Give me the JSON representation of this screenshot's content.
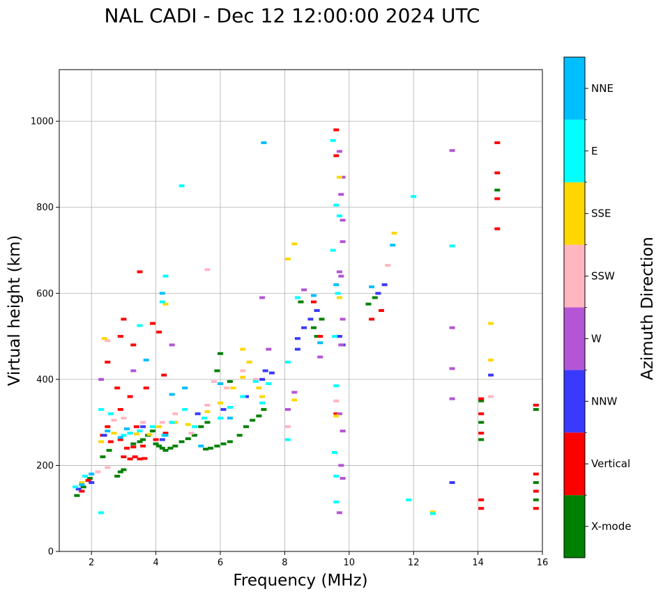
{
  "chart_data": {
    "type": "scatter",
    "title": "NAL CADI - Dec 12 12:00:00 2024 UTC",
    "xlabel": "Frequency (MHz)",
    "ylabel": "Virtual height (km)",
    "xlim": [
      1,
      16
    ],
    "ylim": [
      0,
      1120
    ],
    "xticks": [
      2,
      4,
      6,
      8,
      10,
      12,
      14,
      16
    ],
    "yticks": [
      0,
      200,
      400,
      600,
      800,
      1000
    ],
    "grid": true,
    "colorbar": {
      "label": "Azimuth Direction",
      "categories": [
        "X-mode",
        "Vertical",
        "NNW",
        "W",
        "SSW",
        "SSE",
        "E",
        "NNE"
      ],
      "colors": [
        "#008000",
        "#ff0000",
        "#3a3aff",
        "#b455d5",
        "#ffb6c1",
        "#ffd700",
        "#00ffff",
        "#00bfff"
      ]
    },
    "series": [
      {
        "name": "X-mode",
        "points": [
          [
            1.55,
            130
          ],
          [
            1.75,
            150
          ],
          [
            1.95,
            170
          ],
          [
            2.35,
            220
          ],
          [
            2.55,
            235
          ],
          [
            2.8,
            175
          ],
          [
            2.9,
            185
          ],
          [
            3.0,
            190
          ],
          [
            3.3,
            250
          ],
          [
            3.5,
            255
          ],
          [
            3.6,
            260
          ],
          [
            3.75,
            270
          ],
          [
            3.9,
            280
          ],
          [
            4.0,
            250
          ],
          [
            4.1,
            245
          ],
          [
            4.2,
            240
          ],
          [
            4.3,
            235
          ],
          [
            4.45,
            240
          ],
          [
            4.6,
            245
          ],
          [
            4.8,
            255
          ],
          [
            5.0,
            262
          ],
          [
            5.2,
            270
          ],
          [
            5.4,
            290
          ],
          [
            5.6,
            300
          ],
          [
            5.55,
            238
          ],
          [
            5.7,
            240
          ],
          [
            5.9,
            245
          ],
          [
            6.1,
            250
          ],
          [
            6.3,
            255
          ],
          [
            6.6,
            270
          ],
          [
            6.8,
            290
          ],
          [
            7.0,
            305
          ],
          [
            7.2,
            315
          ],
          [
            7.35,
            330
          ],
          [
            6.3,
            395
          ],
          [
            5.9,
            420
          ],
          [
            6.0,
            460
          ],
          [
            8.5,
            580
          ],
          [
            8.9,
            520
          ],
          [
            9.0,
            500
          ],
          [
            9.15,
            540
          ],
          [
            10.6,
            575
          ],
          [
            10.8,
            590
          ],
          [
            14.1,
            300
          ],
          [
            14.1,
            260
          ],
          [
            14.1,
            350
          ],
          [
            15.8,
            120
          ],
          [
            15.8,
            160
          ],
          [
            15.8,
            330
          ],
          [
            14.6,
            840
          ]
        ]
      },
      {
        "name": "Vertical",
        "points": [
          [
            1.7,
            140
          ],
          [
            1.9,
            165
          ],
          [
            2.35,
            270
          ],
          [
            2.5,
            290
          ],
          [
            2.6,
            255
          ],
          [
            3.0,
            220
          ],
          [
            3.2,
            215
          ],
          [
            3.35,
            220
          ],
          [
            3.5,
            215
          ],
          [
            3.65,
            216
          ],
          [
            3.1,
            240
          ],
          [
            3.3,
            243
          ],
          [
            3.6,
            245
          ],
          [
            2.9,
            260
          ],
          [
            3.4,
            290
          ],
          [
            4.0,
            260
          ],
          [
            4.3,
            275
          ],
          [
            2.9,
            330
          ],
          [
            3.2,
            360
          ],
          [
            3.7,
            380
          ],
          [
            4.5,
            300
          ],
          [
            2.5,
            440
          ],
          [
            2.9,
            500
          ],
          [
            3.0,
            540
          ],
          [
            3.3,
            480
          ],
          [
            3.5,
            650
          ],
          [
            3.9,
            530
          ],
          [
            4.1,
            510
          ],
          [
            4.25,
            410
          ],
          [
            2.8,
            380
          ],
          [
            8.9,
            580
          ],
          [
            9.1,
            500
          ],
          [
            9.0,
            560
          ],
          [
            9.6,
            320
          ],
          [
            9.6,
            980
          ],
          [
            9.6,
            920
          ],
          [
            10.7,
            540
          ],
          [
            11.0,
            560
          ],
          [
            14.1,
            100
          ],
          [
            14.1,
            120
          ],
          [
            14.1,
            355
          ],
          [
            14.1,
            320
          ],
          [
            14.1,
            275
          ],
          [
            14.6,
            950
          ],
          [
            14.6,
            880
          ],
          [
            14.6,
            820
          ],
          [
            14.6,
            750
          ],
          [
            15.8,
            100
          ],
          [
            15.8,
            140
          ],
          [
            15.8,
            180
          ],
          [
            15.8,
            340
          ]
        ]
      },
      {
        "name": "NNW",
        "points": [
          [
            1.6,
            145
          ],
          [
            2.0,
            160
          ],
          [
            2.4,
            270
          ],
          [
            3.2,
            275
          ],
          [
            3.6,
            290
          ],
          [
            4.2,
            260
          ],
          [
            4.6,
            300
          ],
          [
            5.3,
            320
          ],
          [
            6.1,
            330
          ],
          [
            6.8,
            360
          ],
          [
            7.3,
            400
          ],
          [
            7.4,
            420
          ],
          [
            8.4,
            470
          ],
          [
            8.4,
            495
          ],
          [
            8.6,
            520
          ],
          [
            8.8,
            540
          ],
          [
            9.0,
            560
          ],
          [
            9.7,
            500
          ],
          [
            9.8,
            480
          ],
          [
            10.9,
            600
          ],
          [
            11.1,
            620
          ],
          [
            13.2,
            160
          ],
          [
            14.4,
            410
          ],
          [
            7.6,
            415
          ]
        ]
      },
      {
        "name": "W",
        "points": [
          [
            2.3,
            400
          ],
          [
            3.3,
            420
          ],
          [
            4.5,
            480
          ],
          [
            7.3,
            590
          ],
          [
            7.5,
            470
          ],
          [
            8.1,
            330
          ],
          [
            8.3,
            370
          ],
          [
            8.6,
            608
          ],
          [
            9.1,
            452
          ],
          [
            9.7,
            930
          ],
          [
            9.8,
            870
          ],
          [
            9.75,
            830
          ],
          [
            9.8,
            770
          ],
          [
            9.8,
            720
          ],
          [
            9.7,
            650
          ],
          [
            9.75,
            640
          ],
          [
            9.8,
            540
          ],
          [
            9.75,
            480
          ],
          [
            9.7,
            320
          ],
          [
            9.8,
            280
          ],
          [
            9.75,
            200
          ],
          [
            9.8,
            170
          ],
          [
            9.7,
            90
          ],
          [
            13.2,
            520
          ],
          [
            13.2,
            425
          ],
          [
            13.2,
            355
          ],
          [
            13.2,
            932
          ]
        ]
      },
      {
        "name": "SSW",
        "points": [
          [
            2.2,
            185
          ],
          [
            2.5,
            195
          ],
          [
            2.7,
            305
          ],
          [
            3.0,
            310
          ],
          [
            3.6,
            300
          ],
          [
            4.2,
            300
          ],
          [
            4.6,
            320
          ],
          [
            5.1,
            275
          ],
          [
            5.6,
            340
          ],
          [
            5.8,
            395
          ],
          [
            6.2,
            380
          ],
          [
            6.7,
            420
          ],
          [
            6.9,
            440
          ],
          [
            7.1,
            400
          ],
          [
            8.1,
            290
          ],
          [
            9.6,
            350
          ],
          [
            11.2,
            665
          ],
          [
            14.4,
            360
          ],
          [
            5.6,
            655
          ],
          [
            2.5,
            490
          ]
        ]
      },
      {
        "name": "SSE",
        "points": [
          [
            1.7,
            160
          ],
          [
            2.3,
            255
          ],
          [
            2.7,
            275
          ],
          [
            3.4,
            273
          ],
          [
            3.8,
            272
          ],
          [
            4.1,
            290
          ],
          [
            4.6,
            300
          ],
          [
            5.0,
            295
          ],
          [
            5.6,
            325
          ],
          [
            6.0,
            345
          ],
          [
            6.4,
            380
          ],
          [
            6.7,
            405
          ],
          [
            6.7,
            470
          ],
          [
            6.9,
            440
          ],
          [
            7.2,
            380
          ],
          [
            7.3,
            360
          ],
          [
            8.1,
            680
          ],
          [
            8.3,
            715
          ],
          [
            8.3,
            352
          ],
          [
            9.6,
            315
          ],
          [
            9.7,
            590
          ],
          [
            9.7,
            870
          ],
          [
            11.4,
            740
          ],
          [
            12.6,
            92
          ],
          [
            14.4,
            530
          ],
          [
            14.4,
            445
          ],
          [
            4.3,
            575
          ],
          [
            2.4,
            495
          ]
        ]
      },
      {
        "name": "E",
        "points": [
          [
            1.5,
            150
          ],
          [
            1.8,
            175
          ],
          [
            2.3,
            330
          ],
          [
            2.6,
            320
          ],
          [
            3.0,
            270
          ],
          [
            3.2,
            275
          ],
          [
            3.5,
            280
          ],
          [
            3.9,
            290
          ],
          [
            4.25,
            270
          ],
          [
            4.5,
            300
          ],
          [
            4.9,
            330
          ],
          [
            5.2,
            290
          ],
          [
            5.5,
            310
          ],
          [
            6.0,
            310
          ],
          [
            6.3,
            335
          ],
          [
            6.7,
            360
          ],
          [
            7.1,
            395
          ],
          [
            7.3,
            345
          ],
          [
            7.5,
            390
          ],
          [
            8.1,
            260
          ],
          [
            8.1,
            440
          ],
          [
            8.4,
            590
          ],
          [
            9.5,
            955
          ],
          [
            9.6,
            805
          ],
          [
            9.7,
            780
          ],
          [
            9.5,
            700
          ],
          [
            9.65,
            600
          ],
          [
            9.55,
            500
          ],
          [
            9.6,
            385
          ],
          [
            9.55,
            230
          ],
          [
            9.6,
            175
          ],
          [
            9.6,
            115
          ],
          [
            11.85,
            120
          ],
          [
            12.0,
            825
          ],
          [
            12.6,
            88
          ],
          [
            13.2,
            710
          ],
          [
            4.8,
            850
          ],
          [
            2.3,
            90
          ],
          [
            4.3,
            640
          ],
          [
            4.2,
            580
          ],
          [
            3.5,
            525
          ]
        ]
      },
      {
        "name": "NNE",
        "points": [
          [
            1.7,
            155
          ],
          [
            2.0,
            180
          ],
          [
            2.5,
            280
          ],
          [
            2.9,
            265
          ],
          [
            3.1,
            285
          ],
          [
            4.3,
            270
          ],
          [
            4.9,
            380
          ],
          [
            5.4,
            245
          ],
          [
            6.0,
            390
          ],
          [
            6.3,
            310
          ],
          [
            7.35,
            950
          ],
          [
            8.9,
            595
          ],
          [
            9.1,
            485
          ],
          [
            9.6,
            620
          ],
          [
            10.7,
            615
          ],
          [
            11.35,
            712
          ],
          [
            4.2,
            600
          ],
          [
            3.7,
            445
          ],
          [
            4.5,
            365
          ]
        ]
      }
    ]
  }
}
